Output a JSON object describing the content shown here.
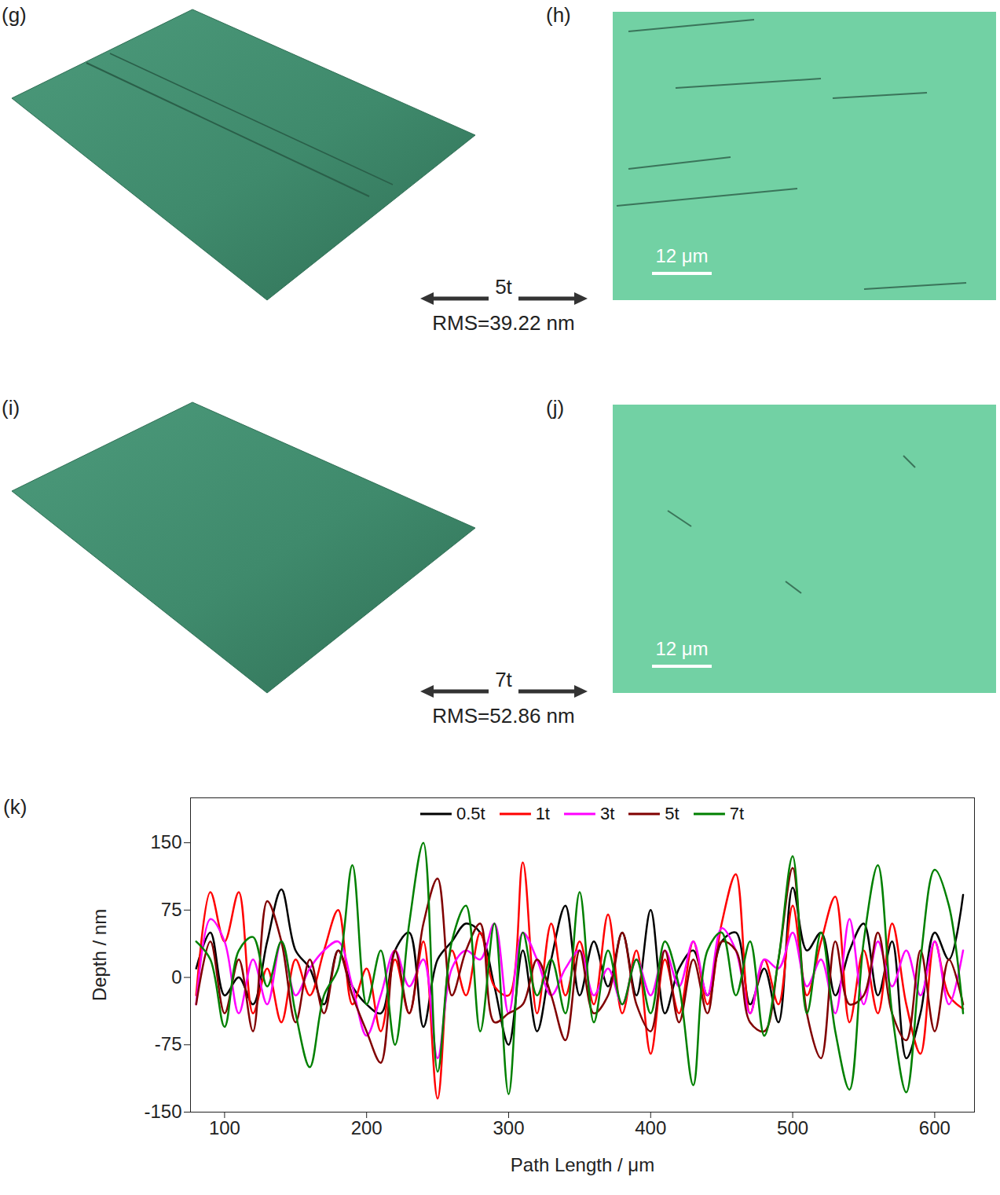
{
  "image_rows": [
    {
      "surface_label": "(g)",
      "micrograph_label": "(h)",
      "sample": "5t",
      "rms": "RMS=39.22 nm",
      "scale_bar": "12 μm"
    },
    {
      "surface_label": "(i)",
      "micrograph_label": "(j)",
      "sample": "7t",
      "rms": "RMS=52.86 nm",
      "scale_bar": "12 μm"
    }
  ],
  "chart_data": {
    "type": "line",
    "panel_label": "(k)",
    "xlabel": "Path Length / μm",
    "ylabel": "Depth / nm",
    "x": [
      80,
      90,
      100,
      110,
      120,
      130,
      140,
      150,
      160,
      170,
      180,
      190,
      200,
      210,
      220,
      230,
      240,
      250,
      260,
      270,
      280,
      290,
      300,
      310,
      320,
      330,
      340,
      350,
      360,
      370,
      380,
      390,
      400,
      410,
      420,
      430,
      440,
      450,
      460,
      470,
      480,
      490,
      500,
      510,
      520,
      530,
      540,
      550,
      560,
      570,
      580,
      590,
      600,
      610,
      620
    ],
    "series": [
      {
        "name": "0.5t",
        "color": "#000000",
        "values": [
          10,
          50,
          -20,
          0,
          -30,
          40,
          98,
          30,
          10,
          -30,
          30,
          -10,
          -30,
          -40,
          30,
          50,
          -55,
          20,
          40,
          60,
          50,
          -10,
          -75,
          30,
          -60,
          20,
          80,
          -20,
          40,
          -10,
          50,
          -20,
          75,
          -40,
          10,
          30,
          -20,
          40,
          50,
          -30,
          10,
          -50,
          100,
          30,
          50,
          -20,
          30,
          60,
          -20,
          40,
          -90,
          -40,
          50,
          20,
          92
        ]
      },
      {
        "name": "1t",
        "color": "#ff0000",
        "values": [
          -20,
          95,
          40,
          95,
          -40,
          10,
          -50,
          20,
          -20,
          30,
          75,
          -30,
          10,
          -60,
          20,
          -40,
          40,
          -135,
          30,
          -20,
          50,
          -10,
          -20,
          128,
          -40,
          60,
          -20,
          40,
          -30,
          70,
          -40,
          30,
          -85,
          20,
          -40,
          40,
          -30,
          60,
          115,
          -40,
          20,
          -30,
          80,
          -20,
          40,
          90,
          -50,
          30,
          -40,
          60,
          -30,
          -85,
          40,
          -20,
          -35
        ]
      },
      {
        "name": "3t",
        "color": "#ff00ff",
        "values": [
          -30,
          65,
          40,
          -40,
          20,
          -30,
          40,
          -20,
          10,
          30,
          40,
          -10,
          -65,
          -20,
          30,
          -10,
          20,
          -90,
          10,
          30,
          20,
          60,
          -40,
          50,
          20,
          -20,
          10,
          30,
          -20,
          10,
          -30,
          20,
          -20,
          30,
          -10,
          40,
          -20,
          55,
          30,
          -40,
          20,
          10,
          50,
          -10,
          20,
          -40,
          65,
          -30,
          40,
          -10,
          30,
          -20,
          40,
          -30,
          30
        ]
      },
      {
        "name": "5t",
        "color": "#800000",
        "values": [
          -30,
          40,
          -40,
          20,
          -60,
          85,
          40,
          -50,
          20,
          -40,
          30,
          -20,
          -60,
          -95,
          30,
          -40,
          60,
          110,
          -20,
          30,
          60,
          -50,
          -40,
          -30,
          20,
          -20,
          -70,
          30,
          -40,
          -20,
          50,
          -30,
          -60,
          30,
          -50,
          20,
          -40,
          40,
          30,
          -50,
          -60,
          20,
          122,
          -40,
          -90,
          40,
          -30,
          -20,
          50,
          -40,
          -70,
          30,
          -60,
          20,
          -30
        ]
      },
      {
        "name": "7t",
        "color": "#008000",
        "values": [
          40,
          20,
          -55,
          30,
          45,
          -10,
          40,
          -40,
          -100,
          -20,
          10,
          125,
          -30,
          30,
          -75,
          60,
          150,
          -105,
          40,
          80,
          -60,
          60,
          -130,
          50,
          -20,
          20,
          -40,
          95,
          -50,
          30,
          -30,
          20,
          -40,
          40,
          -10,
          -120,
          30,
          50,
          -20,
          40,
          -65,
          20,
          135,
          -40,
          50,
          -60,
          -125,
          40,
          125,
          -40,
          -128,
          20,
          120,
          80,
          -40
        ]
      }
    ],
    "xlim": [
      76,
      628
    ],
    "ylim": [
      -150,
      200
    ],
    "xticks": [
      100,
      200,
      300,
      400,
      500,
      600
    ],
    "yticks": [
      -150,
      -75,
      0,
      75,
      150
    ],
    "legend": "top",
    "grid": false
  }
}
